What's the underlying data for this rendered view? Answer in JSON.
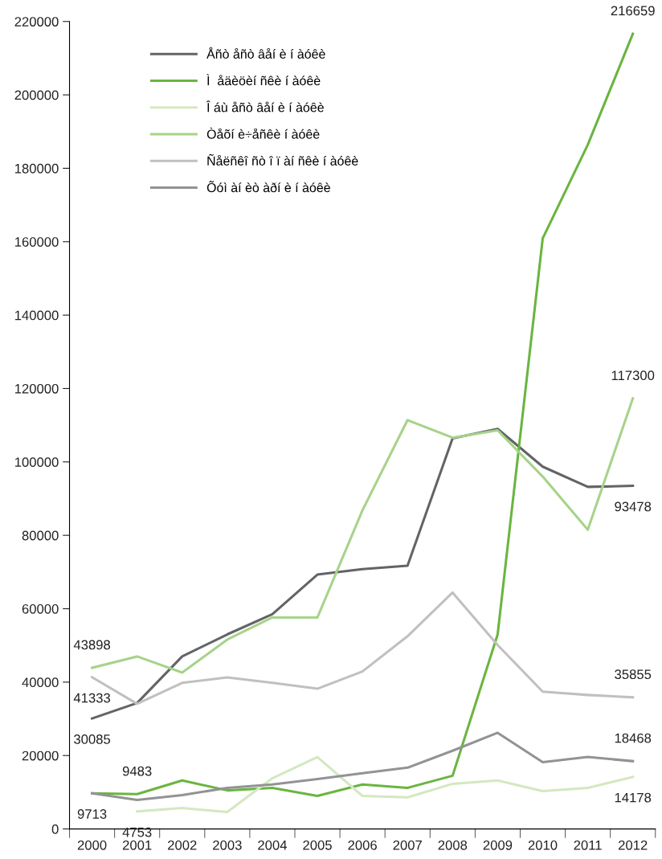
{
  "chart_data": {
    "type": "line",
    "categories": [
      "2000",
      "2001",
      "2002",
      "2003",
      "2004",
      "2005",
      "2006",
      "2007",
      "2008",
      "2009",
      "2010",
      "2011",
      "2012"
    ],
    "series": [
      {
        "name": "Åñò åñò âåí è í àóêè",
        "color": "#636466",
        "values": [
          30085,
          34300,
          47000,
          53000,
          58500,
          69300,
          70800,
          71700,
          106400,
          109000,
          98700,
          93200,
          93478
        ]
      },
      {
        "name": "Ì  åäèöèí ñêè í àóêè",
        "color": "#6ab540",
        "values": [
          9713,
          9483,
          13200,
          10500,
          11200,
          9000,
          12100,
          11200,
          14500,
          53000,
          160900,
          186400,
          216659
        ]
      },
      {
        "name": "Î áù åñò âåí è í àóêè",
        "color": "#d4e8c0",
        "values": [
          null,
          4753,
          5700,
          4600,
          13800,
          19600,
          9000,
          8600,
          12300,
          13200,
          10300,
          11200,
          14178
        ]
      },
      {
        "name": "Òåõí è÷åñêè í àóêè",
        "color": "#a6d38a",
        "values": [
          43898,
          47000,
          42600,
          51600,
          57600,
          57600,
          86800,
          111400,
          106600,
          108600,
          96000,
          81500,
          117300
        ]
      },
      {
        "name": "Ñåëñêî ñò î ï àí ñêè í àóêè",
        "color": "#c0c0c2",
        "values": [
          41333,
          34100,
          39800,
          41300,
          39800,
          38200,
          42900,
          52500,
          64400,
          50100,
          37400,
          36500,
          35855
        ]
      },
      {
        "name": "Õóì àí èò àðí è í àóêè",
        "color": "#939396",
        "values": [
          9713,
          7900,
          9200,
          11200,
          12100,
          13600,
          15200,
          16700,
          21300,
          26200,
          18200,
          19600,
          18468
        ]
      }
    ],
    "ylim": [
      0,
      220000
    ],
    "yticks": [
      0,
      20000,
      40000,
      60000,
      80000,
      100000,
      120000,
      140000,
      160000,
      180000,
      200000,
      220000
    ],
    "grid": false,
    "legend": "top left",
    "marker": "none",
    "line_style": "solid",
    "annotations": [
      {
        "text": "43898",
        "x": "2000",
        "y": 43898
      },
      {
        "text": "41333",
        "x": "2000",
        "y": 41333
      },
      {
        "text": "30085",
        "x": "2000",
        "y": 30085
      },
      {
        "text": "9713",
        "x": "2000",
        "y": 9713
      },
      {
        "text": "9483",
        "x": "2001",
        "y": 9483
      },
      {
        "text": "4753",
        "x": "2001",
        "y": 4753
      },
      {
        "text": "216659",
        "x": "2012",
        "y": 216659
      },
      {
        "text": "117300",
        "x": "2012",
        "y": 117300
      },
      {
        "text": "93478",
        "x": "2012",
        "y": 93478
      },
      {
        "text": "35855",
        "x": "2012",
        "y": 35855
      },
      {
        "text": "18468",
        "x": "2012",
        "y": 18468
      },
      {
        "text": "14178",
        "x": "2012",
        "y": 14178
      }
    ]
  }
}
